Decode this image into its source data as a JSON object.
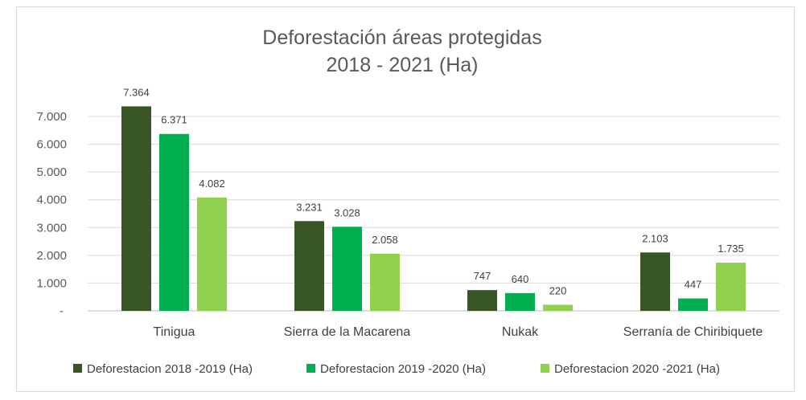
{
  "chart_data": {
    "type": "bar",
    "title": "Deforestación áreas protegidas",
    "subtitle": "2018 - 2021 (Ha)",
    "categories": [
      "Tinigua",
      "Sierra de la Macarena",
      "Nukak",
      "Serranía de Chiribiquete"
    ],
    "series": [
      {
        "name": "Deforestacion 2018 -2019 (Ha)",
        "values": [
          7364,
          3231,
          747,
          2103
        ],
        "labels": [
          "7.364",
          "3.231",
          "747",
          "2.103"
        ],
        "color": "#375623"
      },
      {
        "name": "Deforestacion 2019 -2020 (Ha)",
        "values": [
          6371,
          3028,
          640,
          447
        ],
        "labels": [
          "6.371",
          "3.028",
          "640",
          "447"
        ],
        "color": "#00B050"
      },
      {
        "name": "Deforestacion 2020 -2021 (Ha)",
        "values": [
          4082,
          2058,
          220,
          1735
        ],
        "labels": [
          "4.082",
          "2.058",
          "220",
          "1.735"
        ],
        "color": "#92D050"
      }
    ],
    "yticks": [
      0,
      1000,
      2000,
      3000,
      4000,
      5000,
      6000,
      7000
    ],
    "ytick_labels": [
      "-",
      "1.000",
      "2.000",
      "3.000",
      "4.000",
      "5.000",
      "6.000",
      "7.000"
    ],
    "ylim": [
      0,
      7000
    ],
    "grid": true,
    "legend_position": "bottom"
  }
}
